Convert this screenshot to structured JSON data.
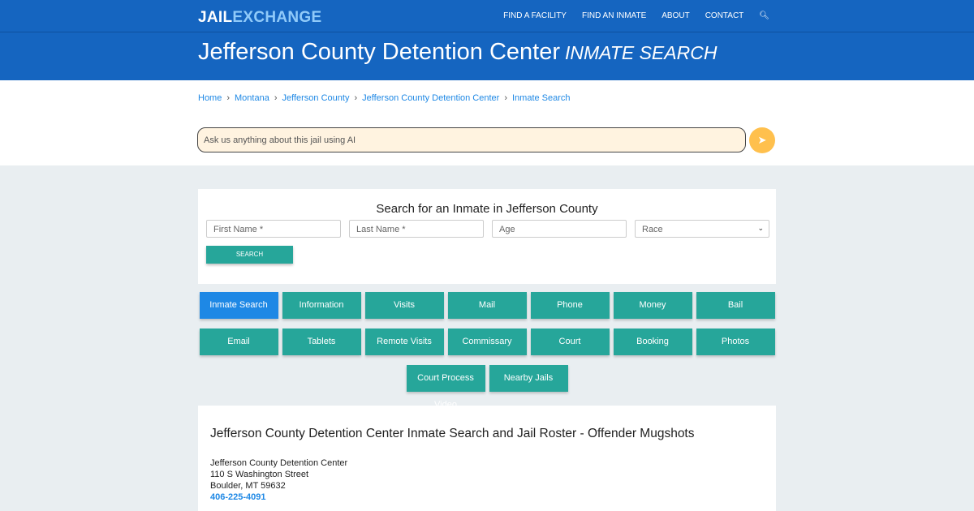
{
  "header": {
    "logo_a": "JAIL",
    "logo_b": "EXCHANGE",
    "nav": [
      "FIND A FACILITY",
      "FIND AN INMATE",
      "ABOUT",
      "CONTACT"
    ]
  },
  "hero": {
    "title": "Jefferson County Detention Center",
    "subtitle": "INMATE SEARCH"
  },
  "breadcrumb": [
    "Home",
    "Montana",
    "Jefferson County",
    "Jefferson County Detention Center",
    "Inmate Search"
  ],
  "ai": {
    "placeholder": "Ask us anything about this jail using AI"
  },
  "search": {
    "title": "Search for an Inmate in Jefferson County",
    "first": "First Name *",
    "last": "Last Name *",
    "age": "Age",
    "race": "Race",
    "button": "SEARCH"
  },
  "buttons": [
    "Inmate Search",
    "Information",
    "Visits",
    "Mail",
    "Phone",
    "Money",
    "Bail",
    "Email",
    "Tablets",
    "Remote Visits",
    "Commissary",
    "Court",
    "Booking",
    "Photos",
    "Court Process Video",
    "Nearby Jails"
  ],
  "info": {
    "title": "Jefferson County Detention Center Inmate Search and Jail Roster - Offender Mugshots",
    "name": "Jefferson County Detention Center",
    "street": "110 S Washington Street",
    "city": "Boulder, MT 59632",
    "phone": "406-225-4091"
  }
}
